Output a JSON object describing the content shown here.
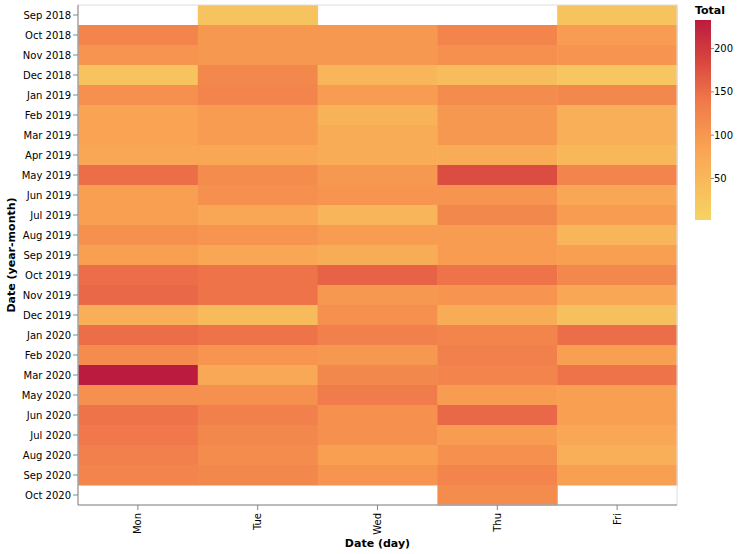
{
  "chart_data": {
    "type": "heatmap",
    "x_label": "Date (day)",
    "y_label": "Date (year-month)",
    "legend_title": "Total",
    "categories": [
      "Mon",
      "Tue",
      "Wed",
      "Thu",
      "Fri"
    ],
    "rows": [
      "Sep 2018",
      "Oct 2018",
      "Nov 2018",
      "Dec 2018",
      "Jan 2019",
      "Feb 2019",
      "Mar 2019",
      "Apr 2019",
      "May 2019",
      "Jun 2019",
      "Jul 2019",
      "Aug 2019",
      "Sep 2019",
      "Oct 2019",
      "Nov 2019",
      "Dec 2019",
      "Jan 2020",
      "Feb 2020",
      "Mar 2020",
      "May 2020",
      "Jun 2020",
      "Jul 2020",
      "Aug 2020",
      "Sep 2020",
      "Oct 2020"
    ],
    "cells": [
      [
        null,
        30,
        null,
        null,
        30
      ],
      [
        125,
        100,
        100,
        125,
        95
      ],
      [
        105,
        100,
        100,
        110,
        105
      ],
      [
        30,
        120,
        55,
        40,
        25
      ],
      [
        110,
        125,
        95,
        115,
        120
      ],
      [
        85,
        95,
        60,
        100,
        65
      ],
      [
        85,
        95,
        70,
        100,
        65
      ],
      [
        80,
        80,
        70,
        70,
        50
      ],
      [
        150,
        115,
        100,
        180,
        125
      ],
      [
        90,
        110,
        105,
        105,
        80
      ],
      [
        90,
        80,
        55,
        120,
        95
      ],
      [
        110,
        105,
        95,
        95,
        55
      ],
      [
        90,
        80,
        70,
        95,
        90
      ],
      [
        150,
        145,
        160,
        145,
        120
      ],
      [
        155,
        145,
        100,
        105,
        80
      ],
      [
        65,
        45,
        110,
        70,
        35
      ],
      [
        150,
        145,
        130,
        125,
        150
      ],
      [
        115,
        105,
        100,
        130,
        90
      ],
      [
        233,
        75,
        120,
        125,
        145
      ],
      [
        110,
        110,
        135,
        95,
        90
      ],
      [
        145,
        130,
        110,
        155,
        90
      ],
      [
        140,
        120,
        110,
        95,
        80
      ],
      [
        130,
        115,
        90,
        110,
        65
      ],
      [
        125,
        120,
        105,
        125,
        90
      ],
      [
        null,
        null,
        null,
        115,
        null
      ]
    ],
    "color_range": [
      2,
      233
    ],
    "color_ticks": [
      50,
      100,
      150,
      200
    ]
  }
}
